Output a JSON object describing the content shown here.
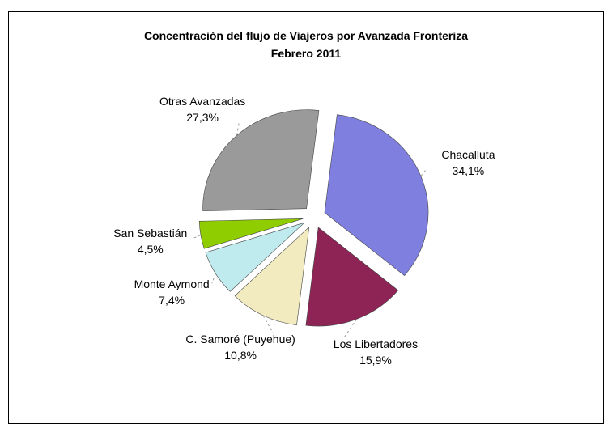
{
  "chart_data": {
    "type": "pie",
    "title": "Concentración del flujo de Viajeros por Avanzada Fronteriza",
    "subtitle": "Febrero 2011",
    "categories": [
      "Chacalluta",
      "Los Libertadores",
      "C. Samoré (Puyehue)",
      "Monte Aymond",
      "San Sebastián",
      "Otras Avanzadas"
    ],
    "values": [
      34.1,
      15.9,
      10.8,
      7.4,
      4.5,
      27.3
    ],
    "value_labels": [
      "34,1%",
      "15,9%",
      "10,8%",
      "7,4%",
      "4,5%",
      "27,3%"
    ],
    "colors": [
      "#7f7fe0",
      "#8e2456",
      "#f2ebbf",
      "#bfeaee",
      "#8fcc00",
      "#9a9a9a"
    ]
  }
}
